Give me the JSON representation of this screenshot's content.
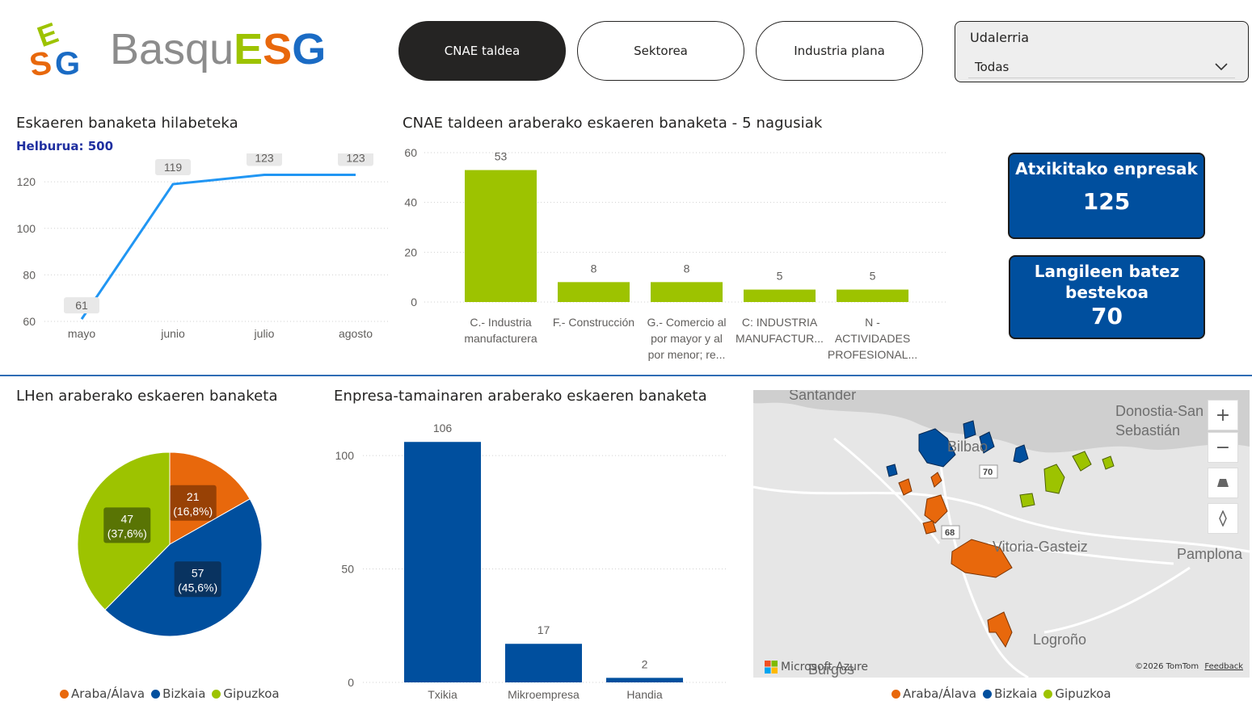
{
  "logo": {
    "prefix": "Basqu",
    "suffix": "ESG",
    "mark_letters": "ESG"
  },
  "tabs": [
    {
      "label": "CNAE taldea",
      "active": true
    },
    {
      "label": "Sektorea",
      "active": false
    },
    {
      "label": "Industria plana",
      "active": false
    }
  ],
  "slicer": {
    "title": "Udalerria",
    "value": "Todas"
  },
  "monthly": {
    "title": "Eskaeren banaketa hilabeteka",
    "subtitle": "Helburua: 500"
  },
  "cnae": {
    "title": "CNAE taldeen araberako eskaeren banaketa - 5 nagusiak"
  },
  "cards": {
    "companies": {
      "title": "Atxikitako enpresak",
      "value": "125"
    },
    "employees": {
      "title_line1": "Langileen batez",
      "title_line2": "bestekoa",
      "value": "70"
    }
  },
  "lh": {
    "title": "LHen araberako eskaeren banaketa"
  },
  "size": {
    "title": "Enpresa-tamainaren araberako eskaeren banaketa"
  },
  "legend": {
    "araba": "Araba/Álava",
    "bizkaia": "Bizkaia",
    "gipuzkoa": "Gipuzkoa"
  },
  "colors": {
    "araba": "#e8680c",
    "bizkaia": "#004f9e",
    "gipuzkoa": "#9dc300",
    "line": "#2196f3",
    "cnae_bar": "#9dc300",
    "size_bar": "#004f9e",
    "divider": "#2f6db5"
  },
  "map": {
    "cities": [
      "Santander",
      "Bilbao",
      "Donostia-San",
      "Sebastián",
      "Vitoria-Gasteiz",
      "Pamplona",
      "Logroño",
      "Burgos"
    ],
    "road_labels": [
      "70",
      "68"
    ],
    "attribution": "©2026 TomTom",
    "feedback": "Feedback",
    "brand": "Microsoft Azure"
  },
  "chart_data": [
    {
      "type": "line",
      "title": "Eskaeren banaketa hilabeteka",
      "categories": [
        "mayo",
        "junio",
        "julio",
        "agosto"
      ],
      "values": [
        61,
        119,
        123,
        123
      ],
      "yticks": [
        60,
        80,
        100,
        120
      ],
      "ylim": [
        60,
        127
      ]
    },
    {
      "type": "bar",
      "title": "CNAE taldeen araberako eskaeren banaketa - 5 nagusiak",
      "categories": [
        [
          "C.- Industria",
          "manufacturera"
        ],
        [
          "F.- Construcción"
        ],
        [
          "G.- Comercio al",
          "por mayor y al",
          "por menor; re..."
        ],
        [
          "C: INDUSTRIA",
          "MANUFACTUR..."
        ],
        [
          "N -",
          "ACTIVIDADES",
          "PROFESIONAL..."
        ]
      ],
      "values": [
        53,
        8,
        8,
        5,
        5
      ],
      "yticks": [
        0,
        20,
        40,
        60
      ],
      "ylim": [
        0,
        60
      ]
    },
    {
      "type": "pie",
      "title": "LHen araberako eskaeren banaketa",
      "slices": [
        {
          "name": "Araba/Álava",
          "value": 21,
          "pct": "(16,8%)"
        },
        {
          "name": "Bizkaia",
          "value": 57,
          "pct": "(45,6%)"
        },
        {
          "name": "Gipuzkoa",
          "value": 47,
          "pct": "(37,6%)"
        }
      ]
    },
    {
      "type": "bar",
      "title": "Enpresa-tamainaren araberako eskaeren banaketa",
      "categories": [
        "Txikia",
        "Mikroempresa",
        "Handia"
      ],
      "values": [
        106,
        17,
        2
      ],
      "yticks": [
        0,
        50,
        100
      ],
      "ylim": [
        0,
        110
      ]
    }
  ]
}
